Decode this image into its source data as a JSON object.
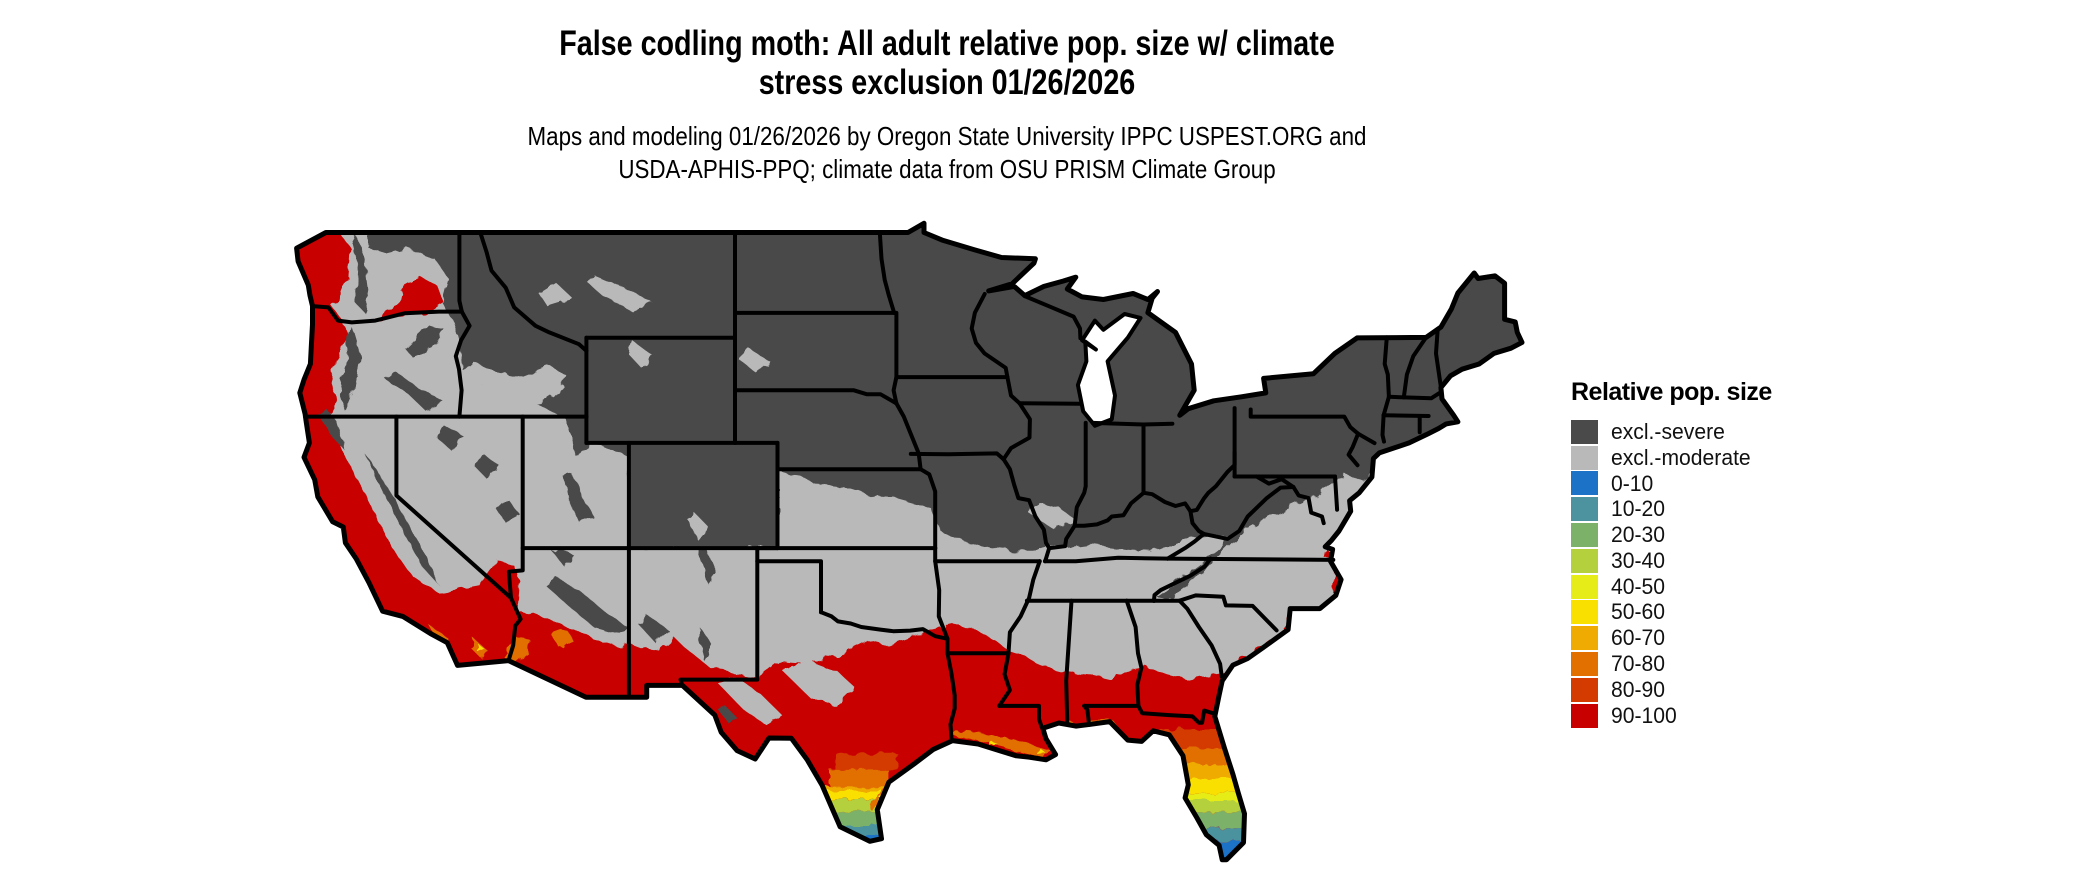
{
  "figure": {
    "title_line1": "False codling moth: All adult relative pop. size w/ climate",
    "title_line2": "stress exclusion 01/26/2026",
    "subtitle_line1": "Maps and modeling 01/26/2026 by Oregon State University IPPC USPEST.ORG and",
    "subtitle_line2": "USDA-APHIS-PPQ; climate data from OSU PRISM Climate Group"
  },
  "legend": {
    "title": "Relative pop. size",
    "items": [
      {
        "label": "excl.-severe",
        "color": "#4A4A4A"
      },
      {
        "label": "excl.-moderate",
        "color": "#B9B9B9"
      },
      {
        "label": "0-10",
        "color": "#1C72C6"
      },
      {
        "label": "10-20",
        "color": "#4C929F"
      },
      {
        "label": "20-30",
        "color": "#7CB169"
      },
      {
        "label": "30-40",
        "color": "#B4D03C"
      },
      {
        "label": "40-50",
        "color": "#E5EC18"
      },
      {
        "label": "50-60",
        "color": "#F9E000"
      },
      {
        "label": "60-70",
        "color": "#EFAB02"
      },
      {
        "label": "70-80",
        "color": "#E17000"
      },
      {
        "label": "80-90",
        "color": "#D33B00"
      },
      {
        "label": "90-100",
        "color": "#C90000"
      }
    ]
  },
  "map": {
    "boundary_color": "#000000",
    "water_color": "#FFFFFF",
    "background": "#FFFFFF"
  }
}
